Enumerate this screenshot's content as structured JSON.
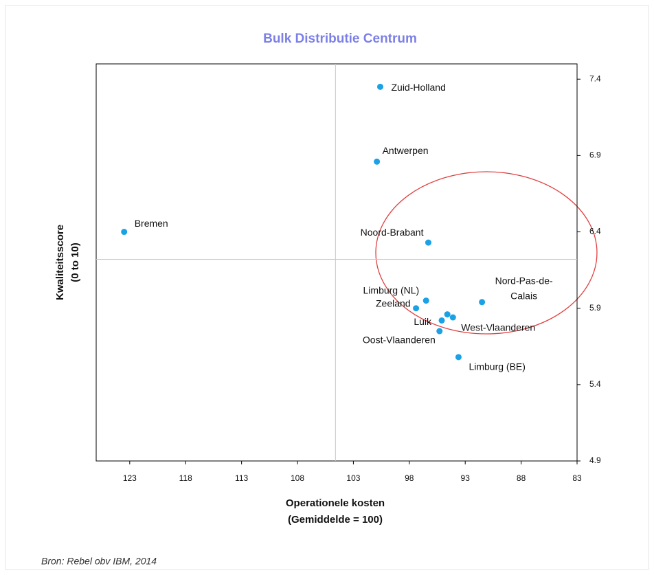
{
  "chart_data": {
    "type": "scatter",
    "title": "Bulk Distributie Centrum",
    "x_label": [
      "Operationele kosten",
      "(Gemiddelde = 100)"
    ],
    "y_label": [
      "Kwaliteitsscore",
      "(0 to 10)"
    ],
    "source": "Bron: Rebel obv IBM, 2014",
    "color": "#1ba1e6",
    "x": [
      100.6,
      100.9,
      123.5,
      96.3,
      96.5,
      97.4,
      91.5,
      95.1,
      94.6,
      94.1,
      95.3,
      93.6
    ],
    "y": [
      7.35,
      6.86,
      6.4,
      6.33,
      5.95,
      5.9,
      5.94,
      5.82,
      5.86,
      5.84,
      5.75,
      5.58
    ],
    "labels": [
      [
        "Zuid-Holland"
      ],
      [
        "Antwerpen"
      ],
      [
        "Bremen"
      ],
      [
        "Noord-Brabant"
      ],
      [
        "Limburg (NL)"
      ],
      [
        "Zeeland"
      ],
      [
        "Nord-Pas-de-",
        "Calais"
      ],
      [
        "Luik"
      ],
      null,
      [
        "West-Vlaanderen"
      ],
      [
        "Oost-Vlaanderen"
      ],
      [
        "Limburg (BE)"
      ]
    ],
    "xlim": [
      126,
      83
    ],
    "xticks": [
      123,
      118,
      113,
      108,
      103,
      98,
      93,
      88,
      83
    ],
    "ylim": [
      4.9,
      7.5
    ],
    "yticks": [
      4.9,
      5.4,
      5.9,
      6.4,
      6.9,
      7.4
    ],
    "reference_x": 104.6,
    "reference_y": 6.22
  }
}
